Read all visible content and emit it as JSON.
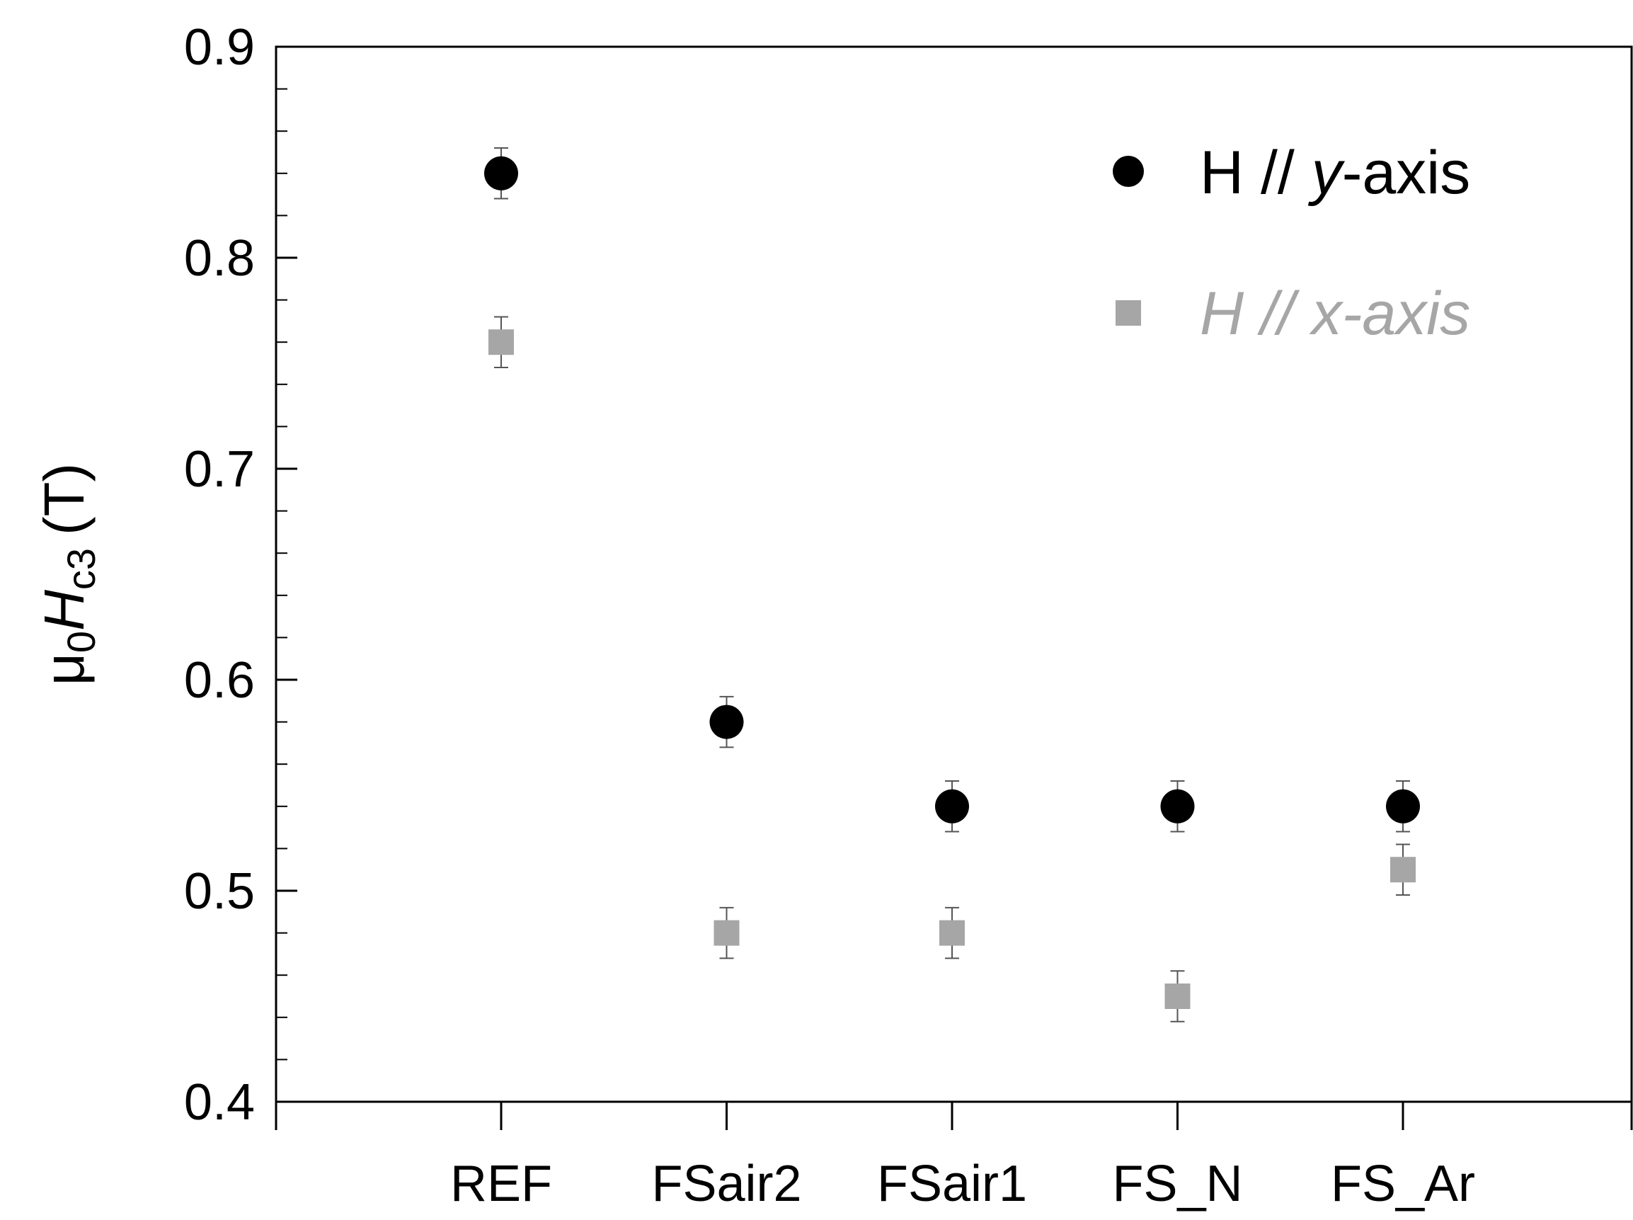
{
  "chart_data": {
    "type": "scatter",
    "categories": [
      "REF",
      "FSair2",
      "FSair1",
      "FS_N",
      "FS_Ar"
    ],
    "ylabel": {
      "mu": "μ",
      "mu_sub": "0",
      "H": "H",
      "H_sub": "c3",
      "unit": "(T)"
    },
    "ylim": [
      0.4,
      0.9
    ],
    "yticks": [
      "0.4",
      "0.5",
      "0.6",
      "0.7",
      "0.8",
      "0.9"
    ],
    "ytick_values": [
      0.4,
      0.5,
      0.6,
      0.7,
      0.8,
      0.9
    ],
    "grid": false,
    "legend_position": "top-right",
    "series": [
      {
        "name": "H // y-axis",
        "legend": {
          "prefix": "H // ",
          "italic": "y",
          "suffix": "-axis"
        },
        "marker": "circle",
        "color": "#000000",
        "values": [
          0.84,
          0.58,
          0.54,
          0.54,
          0.54
        ],
        "errors": [
          0.012,
          0.012,
          0.012,
          0.012,
          0.012
        ]
      },
      {
        "name": "H // x-axis",
        "legend": {
          "prefix": "H // ",
          "italic": "x",
          "suffix": "-axis"
        },
        "marker": "square",
        "color": "#a6a6a6",
        "values": [
          0.76,
          0.48,
          0.48,
          0.45,
          0.51
        ],
        "errors": [
          0.012,
          0.012,
          0.012,
          0.012,
          0.012
        ]
      }
    ]
  }
}
